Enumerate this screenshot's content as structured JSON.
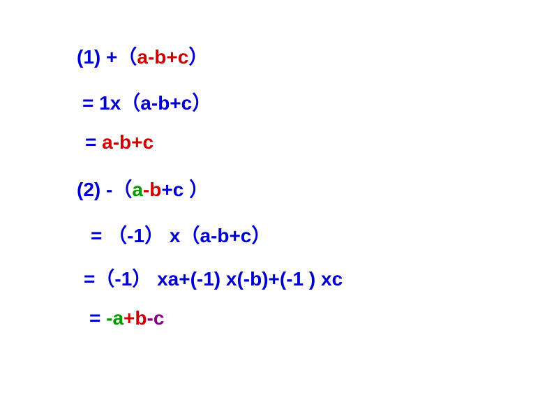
{
  "colors": {
    "blue": "#0000cc",
    "red": "#cc0000",
    "green": "#009900",
    "purple": "#800080",
    "background": "#ffffff"
  },
  "typography": {
    "font_family": "Arial, Microsoft YaHei, sans-serif",
    "font_size_pt": 21,
    "font_weight": "bold"
  },
  "line1": {
    "p1": "(1) +",
    "p2": "（",
    "p3": "a-b+c",
    "p4": "）"
  },
  "line2": {
    "p1": "= 1x",
    "p2": "（",
    "p3": "a-b+c",
    "p4": "）"
  },
  "line3": {
    "p1": "= ",
    "p2": "a-b+c"
  },
  "line4": {
    "p1": "(2) -",
    "p2": "（",
    "p3": "a",
    "p4": "-b",
    "p5": "+c ",
    "p6": "）"
  },
  "line5": {
    "p1": "= ",
    "p2": "（",
    "p3": "-1",
    "p4": "）",
    "p5": " x",
    "p6": "（",
    "p7": "a-b+c",
    "p8": "）"
  },
  "line6": {
    "p1": "=",
    "p2": "（",
    "p3": "-1",
    "p4": "）",
    "p5": "  xa+(-1) x(-b)+(-1 ) xc"
  },
  "line7": {
    "p1": "= ",
    "p2": "-a",
    "p3": "+b",
    "p4": "-c"
  }
}
